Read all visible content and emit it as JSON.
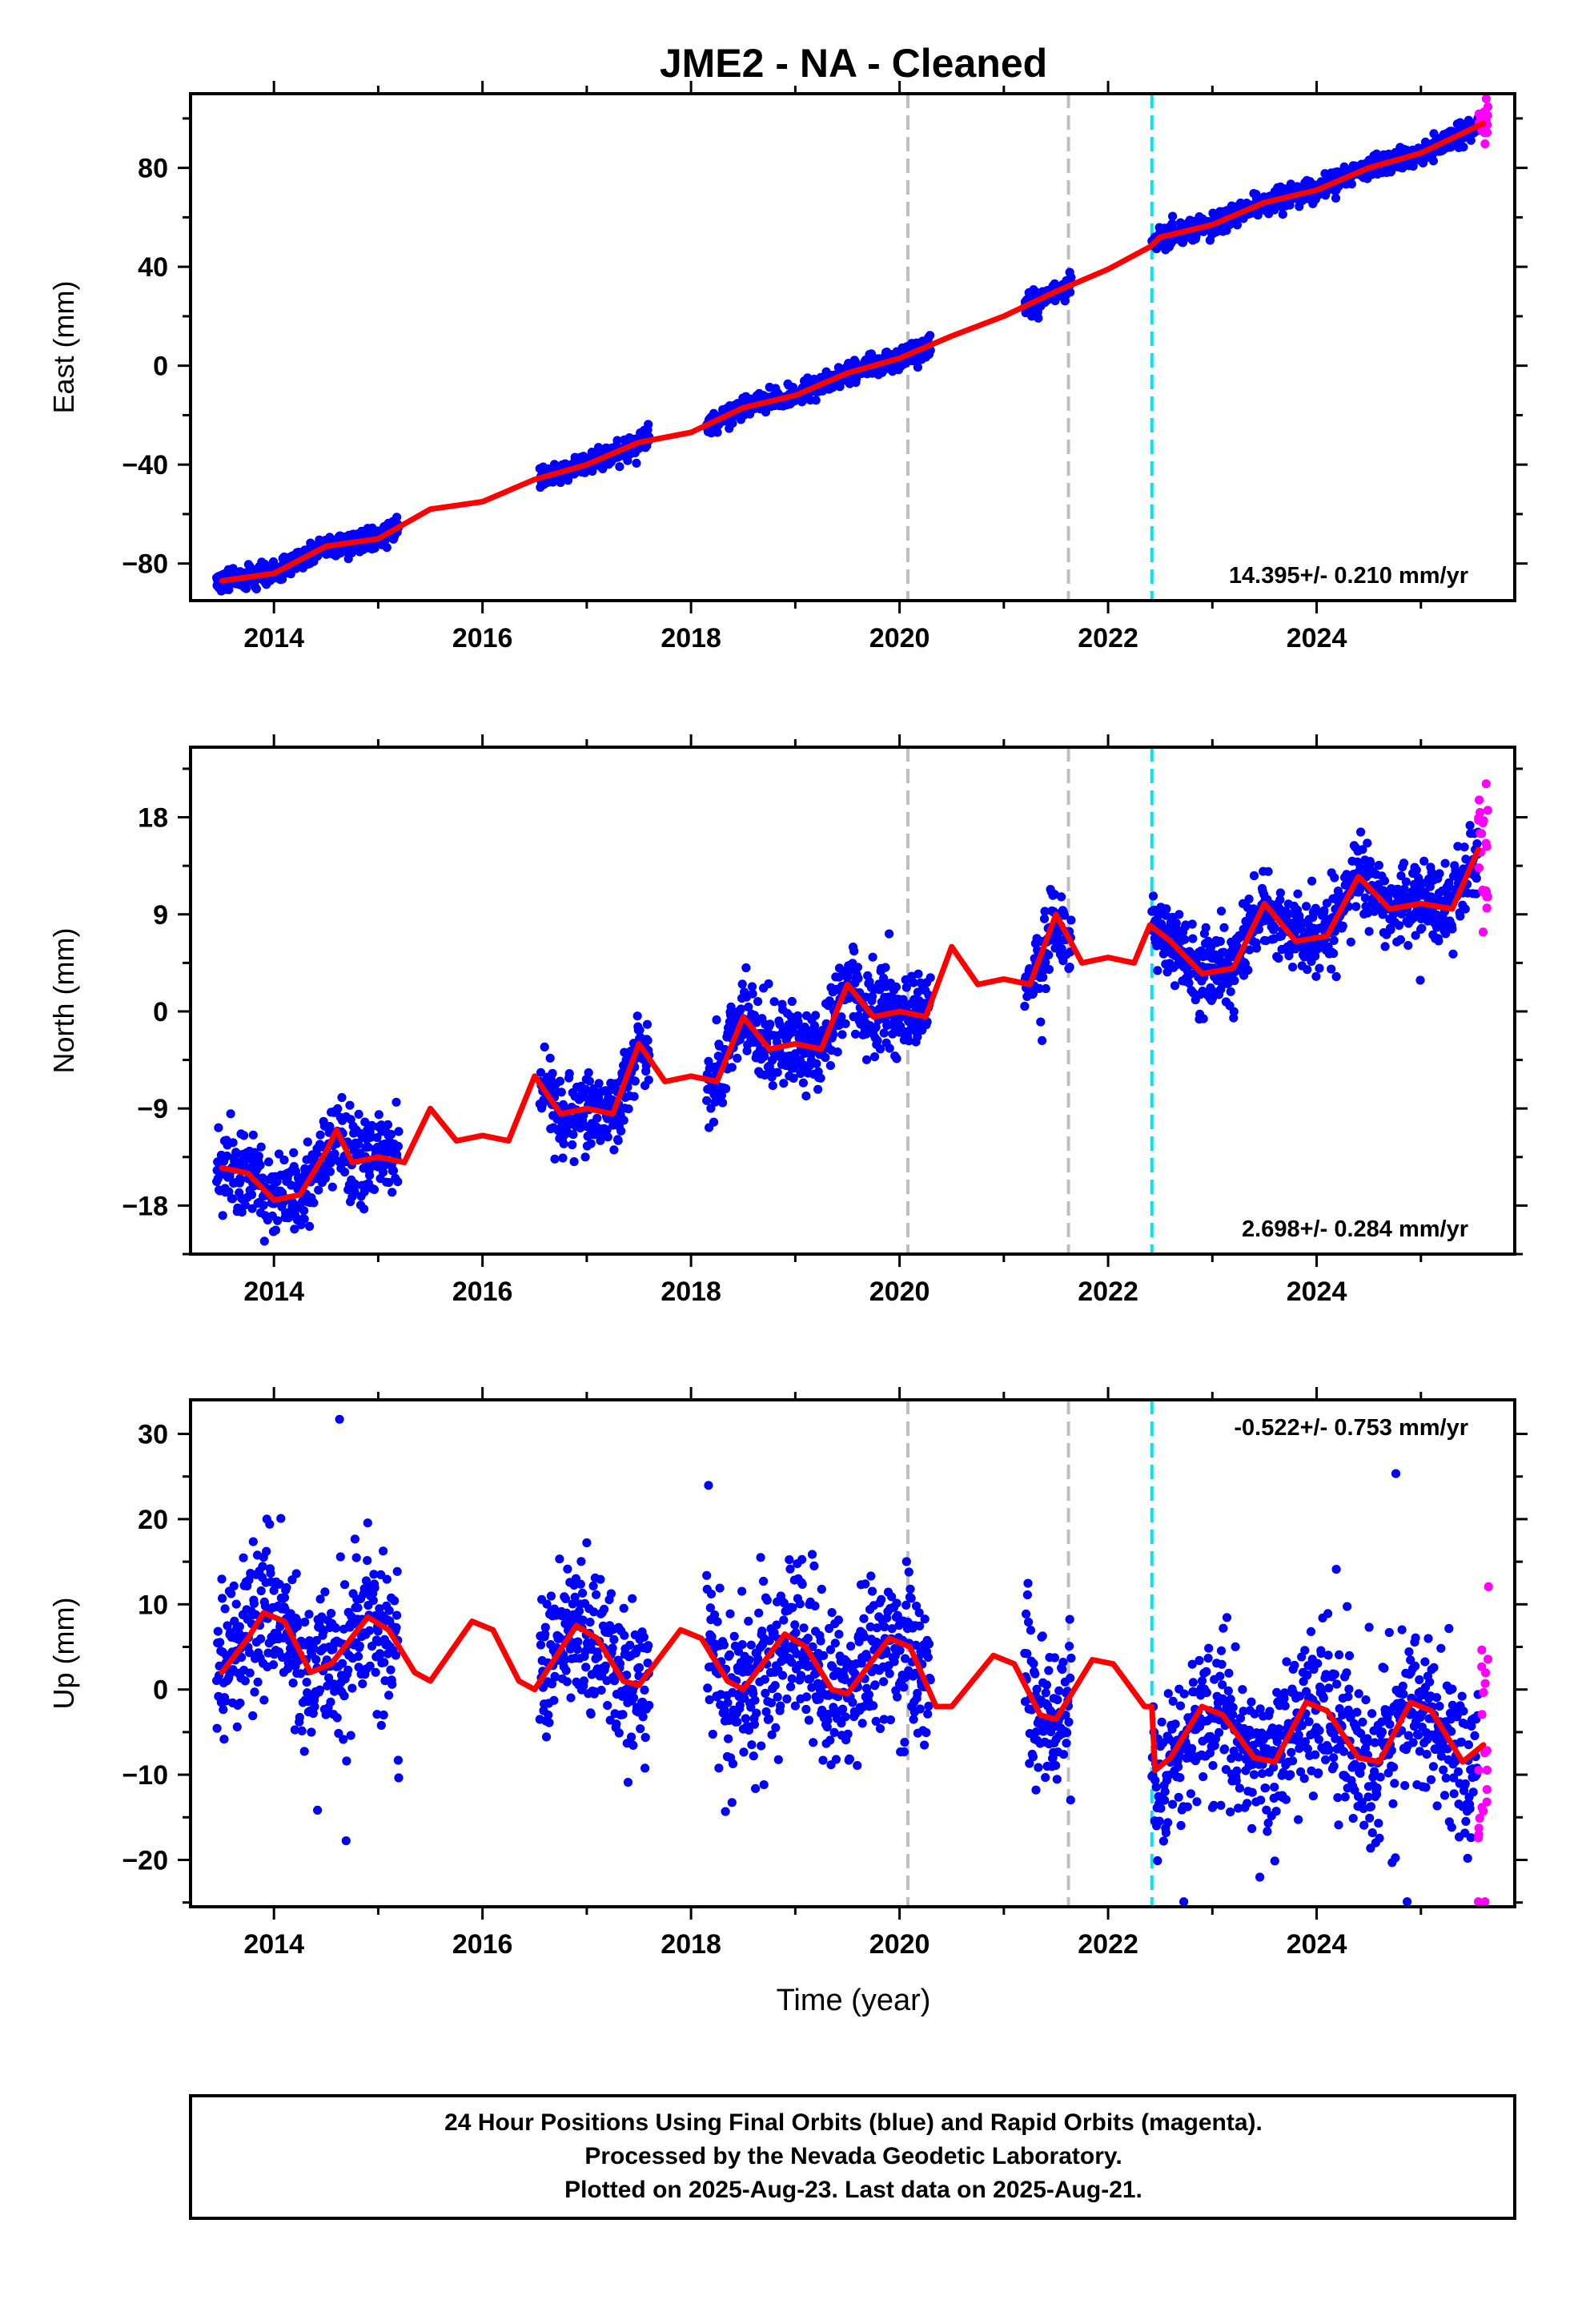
{
  "title": "JME2  - NA - Cleaned",
  "xlabel": "Time (year)",
  "footer": {
    "lines": [
      "24 Hour Positions Using Final Orbits (blue) and Rapid Orbits (magenta).",
      "Processed by the Nevada Geodetic Laboratory.",
      "Plotted on 2025-Aug-23. Last data on 2025-Aug-21."
    ]
  },
  "colors": {
    "final_orbits": "#0000ff",
    "rapid_orbits": "#ff00ff",
    "model": "#ff0000",
    "event_gray": "#bfbfbf",
    "event_cyan": "#00e5ee"
  },
  "chart_data": [
    {
      "type": "scatter",
      "name": "east",
      "ylabel": "East (mm)",
      "rate_label": "14.395+/- 0.210 mm/yr",
      "xlim": [
        2013.2,
        2025.9
      ],
      "ylim": [
        -95,
        110
      ],
      "xticks": [
        2014,
        2016,
        2018,
        2020,
        2022,
        2024
      ],
      "yticks": [
        -80,
        -40,
        0,
        40,
        80
      ],
      "event_lines": [
        {
          "x": 2020.08,
          "kind": "gray"
        },
        {
          "x": 2021.62,
          "kind": "gray"
        },
        {
          "x": 2022.42,
          "kind": "cyan"
        }
      ],
      "data_segments": [
        [
          2013.45,
          2015.2
        ],
        [
          2016.55,
          2017.6
        ],
        [
          2018.15,
          2020.3
        ],
        [
          2021.2,
          2021.65
        ],
        [
          2022.42,
          2025.55
        ]
      ],
      "rapid_range": [
        2025.55,
        2025.65
      ],
      "model_points": [
        [
          2013.5,
          -87
        ],
        [
          2014.0,
          -84
        ],
        [
          2014.5,
          -73
        ],
        [
          2015.0,
          -70
        ],
        [
          2015.5,
          -58
        ],
        [
          2016.0,
          -55
        ],
        [
          2016.5,
          -46
        ],
        [
          2017.0,
          -40
        ],
        [
          2017.5,
          -31
        ],
        [
          2018.0,
          -27
        ],
        [
          2018.5,
          -17
        ],
        [
          2019.0,
          -12
        ],
        [
          2019.5,
          -3
        ],
        [
          2020.0,
          3
        ],
        [
          2020.5,
          12
        ],
        [
          2021.0,
          20
        ],
        [
          2021.5,
          30
        ],
        [
          2022.0,
          39
        ],
        [
          2022.4,
          48
        ],
        [
          2022.5,
          52
        ],
        [
          2023.0,
          57
        ],
        [
          2023.5,
          66
        ],
        [
          2024.0,
          71
        ],
        [
          2024.5,
          80
        ],
        [
          2025.0,
          86
        ],
        [
          2025.6,
          98
        ]
      ],
      "scatter_sd": 2.2,
      "outlier_rate": 0
    },
    {
      "type": "scatter",
      "name": "north",
      "ylabel": "North (mm)",
      "rate_label": "2.698+/- 0.284 mm/yr",
      "xlim": [
        2013.2,
        2025.9
      ],
      "ylim": [
        -22.5,
        24.5
      ],
      "xticks": [
        2014,
        2016,
        2018,
        2020,
        2022,
        2024
      ],
      "yticks": [
        -18,
        -9,
        0,
        9,
        18
      ],
      "event_lines": [
        {
          "x": 2020.08,
          "kind": "gray"
        },
        {
          "x": 2021.62,
          "kind": "gray"
        },
        {
          "x": 2022.42,
          "kind": "cyan"
        }
      ],
      "data_segments": [
        [
          2013.45,
          2015.2
        ],
        [
          2016.55,
          2017.6
        ],
        [
          2018.15,
          2020.3
        ],
        [
          2021.2,
          2021.65
        ],
        [
          2022.42,
          2025.55
        ]
      ],
      "rapid_range": [
        2025.55,
        2025.65
      ],
      "model_points": [
        [
          2013.5,
          -14.5
        ],
        [
          2013.75,
          -15
        ],
        [
          2014.0,
          -17.5
        ],
        [
          2014.25,
          -17
        ],
        [
          2014.5,
          -13
        ],
        [
          2014.6,
          -11
        ],
        [
          2014.75,
          -14
        ],
        [
          2015.0,
          -13.5
        ],
        [
          2015.25,
          -14
        ],
        [
          2015.5,
          -9
        ],
        [
          2015.75,
          -12
        ],
        [
          2016.0,
          -11.5
        ],
        [
          2016.25,
          -12
        ],
        [
          2016.5,
          -6
        ],
        [
          2016.75,
          -9.5
        ],
        [
          2017.0,
          -9
        ],
        [
          2017.25,
          -9.5
        ],
        [
          2017.5,
          -3
        ],
        [
          2017.75,
          -6.5
        ],
        [
          2018.0,
          -6
        ],
        [
          2018.25,
          -6.5
        ],
        [
          2018.5,
          -0.5
        ],
        [
          2018.75,
          -3.5
        ],
        [
          2019.0,
          -3
        ],
        [
          2019.25,
          -3.5
        ],
        [
          2019.5,
          2.5
        ],
        [
          2019.75,
          -0.5
        ],
        [
          2020.0,
          0
        ],
        [
          2020.25,
          -0.5
        ],
        [
          2020.5,
          6
        ],
        [
          2020.75,
          2.5
        ],
        [
          2021.0,
          3
        ],
        [
          2021.25,
          2.5
        ],
        [
          2021.5,
          9
        ],
        [
          2021.75,
          4.5
        ],
        [
          2022.0,
          5
        ],
        [
          2022.25,
          4.5
        ],
        [
          2022.4,
          8
        ],
        [
          2022.6,
          6.5
        ],
        [
          2022.9,
          3.5
        ],
        [
          2023.2,
          4
        ],
        [
          2023.5,
          10
        ],
        [
          2023.8,
          6.5
        ],
        [
          2024.1,
          7
        ],
        [
          2024.4,
          12.5
        ],
        [
          2024.7,
          9.5
        ],
        [
          2025.0,
          10
        ],
        [
          2025.3,
          9.5
        ],
        [
          2025.55,
          15
        ]
      ],
      "scatter_sd": 1.8,
      "outlier_rate": 0.01
    },
    {
      "type": "scatter",
      "name": "up",
      "ylabel": "Up (mm)",
      "rate_label": "-0.522+/- 0.753 mm/yr",
      "xlim": [
        2013.2,
        2025.9
      ],
      "ylim": [
        -25.5,
        34
      ],
      "xticks": [
        2014,
        2016,
        2018,
        2020,
        2022,
        2024
      ],
      "yticks": [
        -20,
        -10,
        0,
        10,
        20,
        30
      ],
      "event_lines": [
        {
          "x": 2020.08,
          "kind": "gray"
        },
        {
          "x": 2021.62,
          "kind": "gray"
        },
        {
          "x": 2022.42,
          "kind": "cyan"
        }
      ],
      "data_segments": [
        [
          2013.45,
          2015.2
        ],
        [
          2016.55,
          2017.6
        ],
        [
          2018.15,
          2020.3
        ],
        [
          2021.2,
          2021.65
        ],
        [
          2022.42,
          2025.55
        ]
      ],
      "rapid_range": [
        2025.55,
        2025.65
      ],
      "model_points": [
        [
          2013.5,
          2
        ],
        [
          2013.75,
          6
        ],
        [
          2013.9,
          9
        ],
        [
          2014.1,
          8
        ],
        [
          2014.35,
          2
        ],
        [
          2014.55,
          3
        ],
        [
          2014.9,
          8.5
        ],
        [
          2015.1,
          7
        ],
        [
          2015.35,
          2
        ],
        [
          2015.5,
          1
        ],
        [
          2015.9,
          8
        ],
        [
          2016.1,
          7
        ],
        [
          2016.35,
          1
        ],
        [
          2016.5,
          0
        ],
        [
          2016.9,
          7.5
        ],
        [
          2017.1,
          6
        ],
        [
          2017.35,
          1
        ],
        [
          2017.5,
          0.5
        ],
        [
          2017.9,
          7
        ],
        [
          2018.1,
          6
        ],
        [
          2018.35,
          1
        ],
        [
          2018.5,
          0
        ],
        [
          2018.9,
          6.5
        ],
        [
          2019.1,
          5
        ],
        [
          2019.35,
          0
        ],
        [
          2019.5,
          -0.5
        ],
        [
          2019.9,
          6
        ],
        [
          2020.1,
          5
        ],
        [
          2020.35,
          -2
        ],
        [
          2020.5,
          -2
        ],
        [
          2020.9,
          4
        ],
        [
          2021.1,
          3
        ],
        [
          2021.35,
          -3
        ],
        [
          2021.5,
          -3.5
        ],
        [
          2021.85,
          3.5
        ],
        [
          2022.05,
          3
        ],
        [
          2022.35,
          -2
        ],
        [
          2022.42,
          -2
        ],
        [
          2022.45,
          -9.5
        ],
        [
          2022.6,
          -8
        ],
        [
          2022.9,
          -2
        ],
        [
          2023.1,
          -3
        ],
        [
          2023.4,
          -8
        ],
        [
          2023.6,
          -8.5
        ],
        [
          2023.9,
          -1.5
        ],
        [
          2024.1,
          -2.5
        ],
        [
          2024.4,
          -8
        ],
        [
          2024.6,
          -8.5
        ],
        [
          2024.9,
          -1.5
        ],
        [
          2025.1,
          -2.5
        ],
        [
          2025.4,
          -8.5
        ],
        [
          2025.6,
          -6.5
        ]
      ],
      "scatter_sd": 4.5,
      "outlier_rate": 0.04
    }
  ]
}
